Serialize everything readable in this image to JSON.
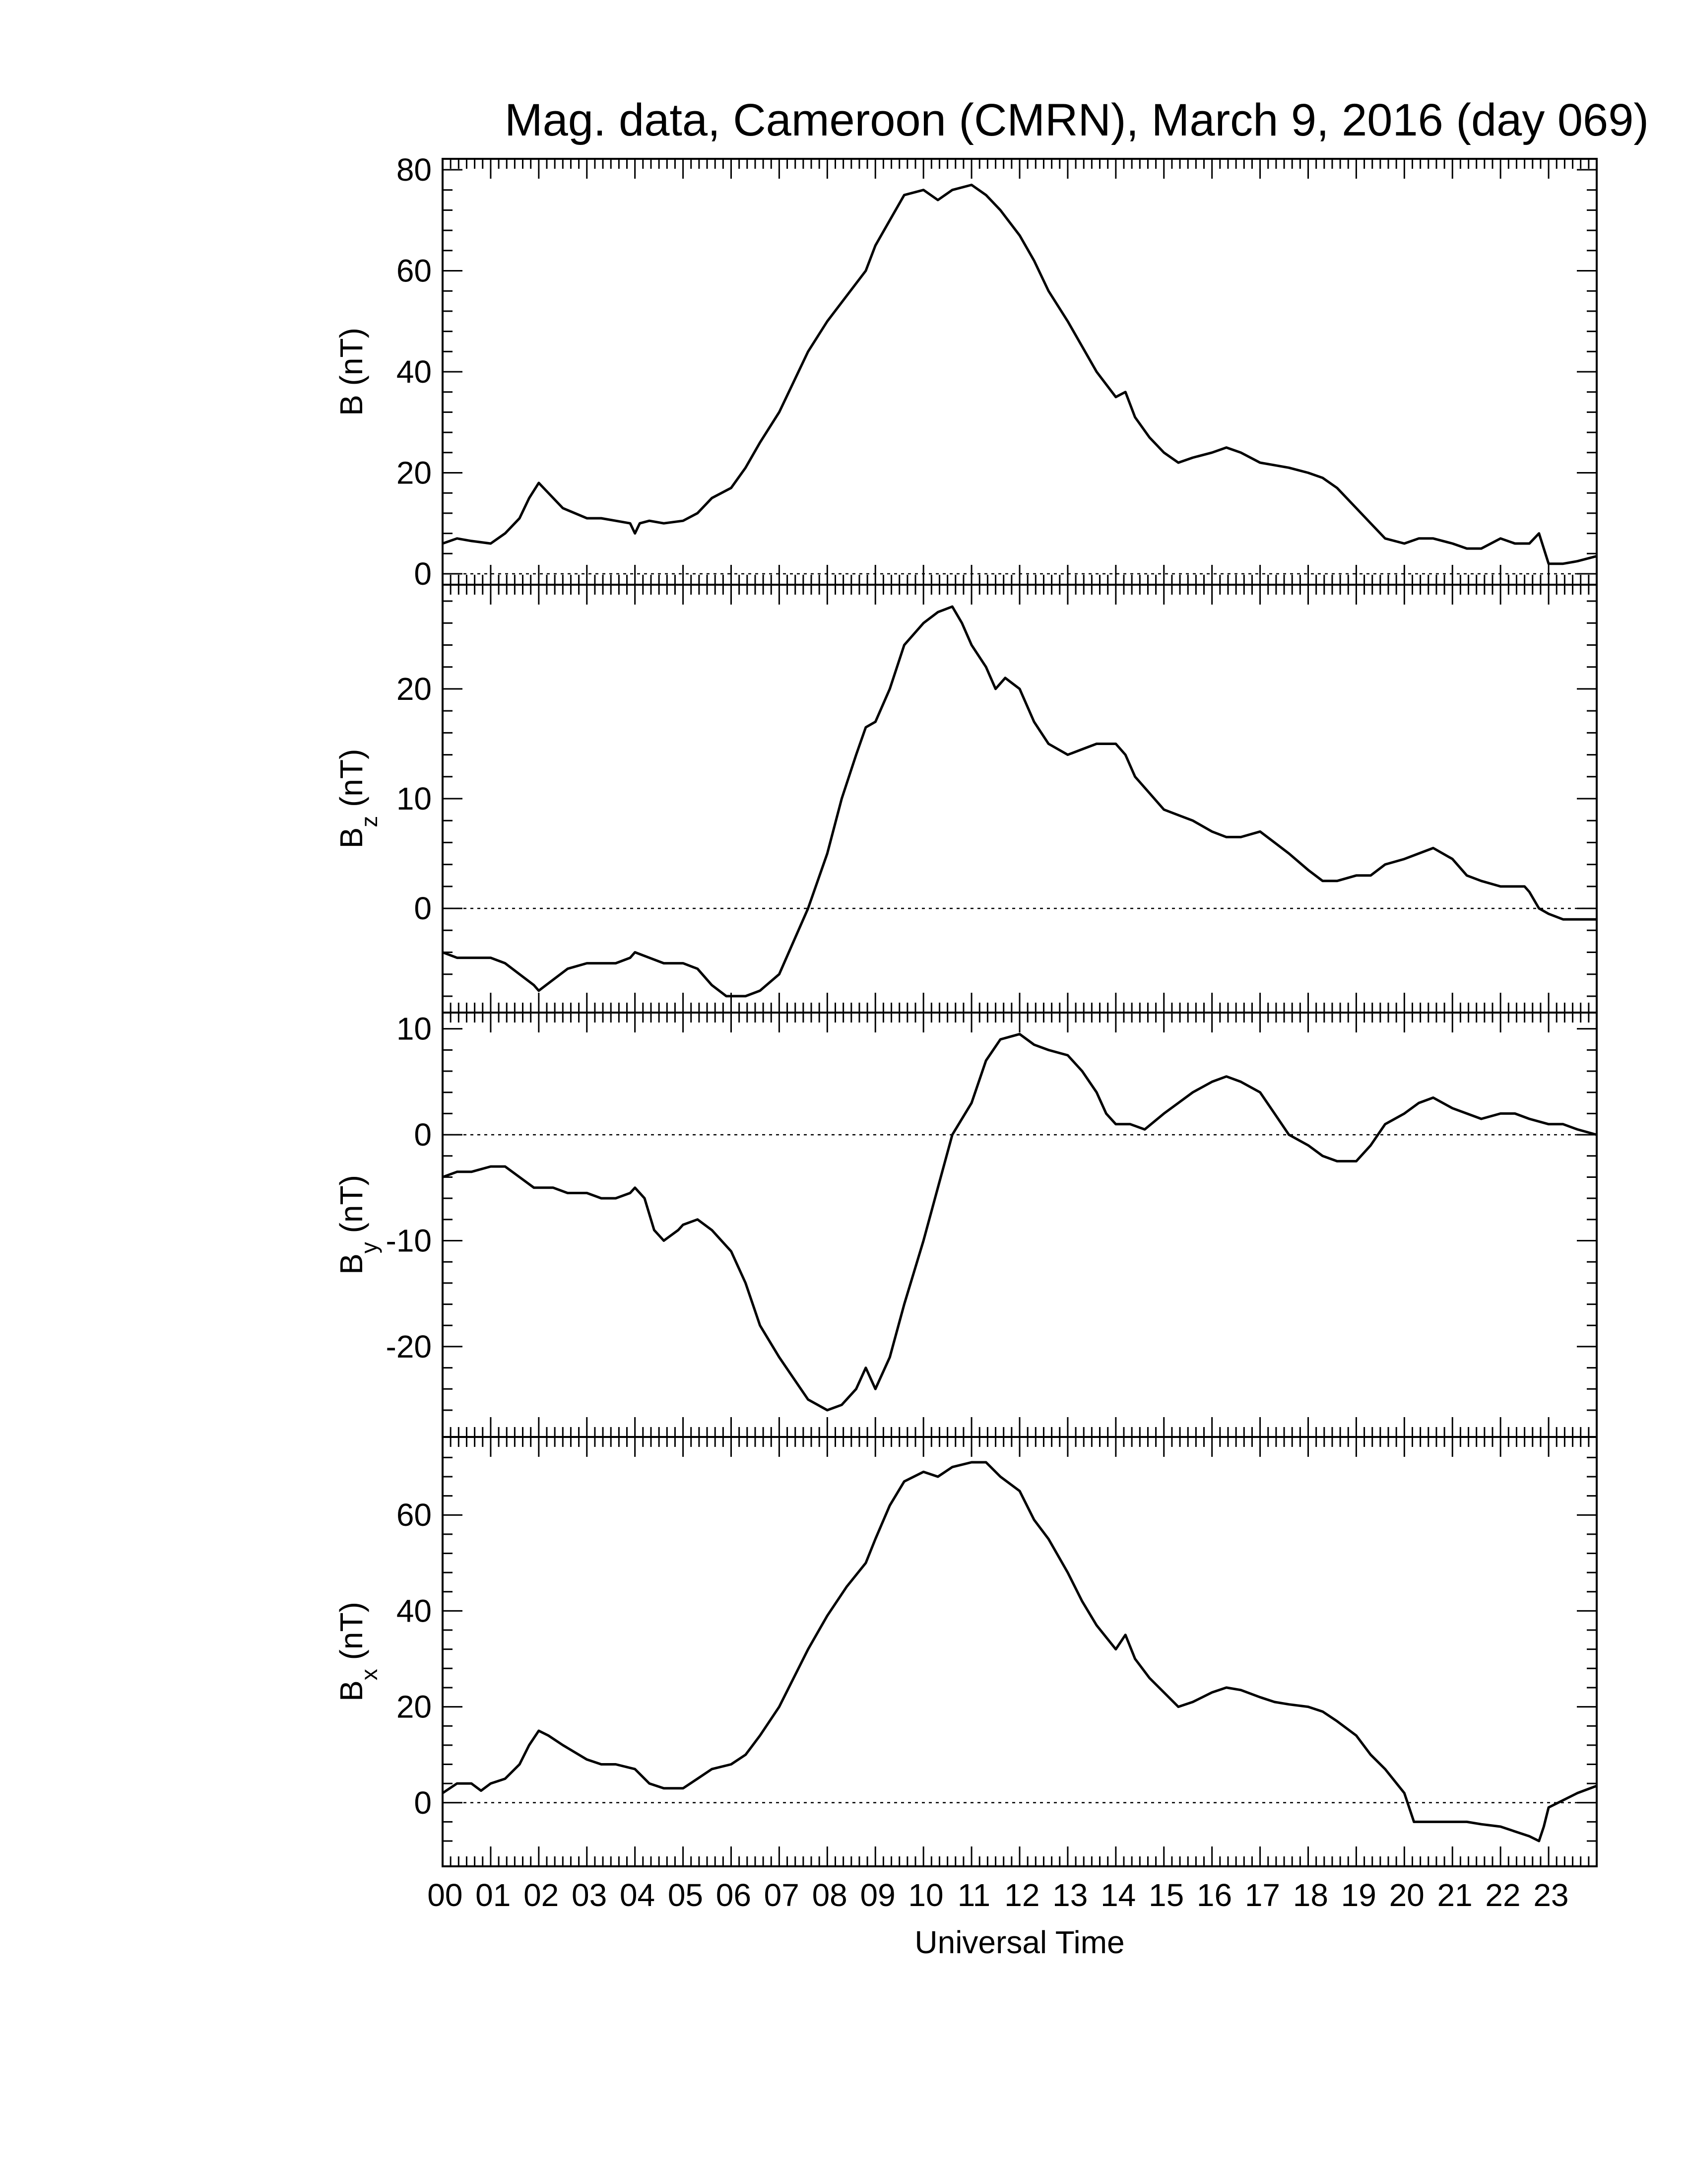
{
  "chart_data": {
    "type": "line",
    "title": "Mag. data, Cameroon (CMRN), March 9, 2016 (day 069)",
    "xlabel": "Universal Time",
    "x_unit": "hours (UT)",
    "xlim": [
      0,
      24
    ],
    "x_tick_labels": [
      "00",
      "01",
      "02",
      "03",
      "04",
      "05",
      "06",
      "07",
      "08",
      "09",
      "10",
      "11",
      "12",
      "13",
      "14",
      "15",
      "16",
      "17",
      "18",
      "19",
      "20",
      "21",
      "22",
      "23"
    ],
    "panels": [
      {
        "id": "B",
        "ylabel_main": "B",
        "ylabel_sub": "",
        "ylabel_unit": " (nT)",
        "ylim": [
          0,
          80
        ],
        "yticks": [
          0,
          20,
          40,
          60,
          80
        ],
        "ytick_labels": [
          "0",
          "20",
          "40",
          "60",
          "80"
        ],
        "zero_line": true,
        "series": [
          {
            "x": [
              0,
              0.3,
              0.6,
              1.0,
              1.3,
              1.6,
              1.8,
              2.0,
              2.2,
              2.5,
              3.0,
              3.3,
              3.6,
              3.9,
              4.0,
              4.1,
              4.3,
              4.6,
              5.0,
              5.3,
              5.6,
              6.0,
              6.3,
              6.6,
              7.0,
              7.3,
              7.6,
              8.0,
              8.4,
              8.8,
              9.0,
              9.3,
              9.6,
              10.0,
              10.3,
              10.6,
              11.0,
              11.3,
              11.6,
              12.0,
              12.3,
              12.6,
              13.0,
              13.3,
              13.6,
              14.0,
              14.2,
              14.4,
              14.7,
              15.0,
              15.3,
              15.6,
              16.0,
              16.3,
              16.6,
              17.0,
              17.3,
              17.6,
              18.0,
              18.3,
              18.6,
              19.0,
              19.3,
              19.6,
              20.0,
              20.3,
              20.6,
              21.0,
              21.3,
              21.6,
              22.0,
              22.3,
              22.6,
              22.8,
              22.9,
              23.0,
              23.3,
              23.6,
              24.0
            ],
            "y": [
              6,
              7,
              6.5,
              6,
              8,
              11,
              15,
              18,
              16,
              13,
              11,
              11,
              10.5,
              10,
              8,
              10,
              10.5,
              10,
              10.5,
              12,
              15,
              17,
              21,
              26,
              32,
              38,
              44,
              50,
              55,
              60,
              65,
              70,
              75,
              76,
              74,
              76,
              77,
              75,
              72,
              67,
              62,
              56,
              50,
              45,
              40,
              35,
              36,
              31,
              27,
              24,
              22,
              23,
              24,
              25,
              24,
              22,
              21.5,
              21,
              20,
              19,
              17,
              13,
              10,
              7,
              6,
              7,
              7,
              6,
              5,
              5,
              7,
              6,
              6,
              8,
              5,
              2,
              2,
              2.5,
              3.5
            ]
          }
        ]
      },
      {
        "id": "Bz",
        "ylabel_main": "B",
        "ylabel_sub": "z",
        "ylabel_unit": " (nT)",
        "ylim": [
          -8.5,
          28.5
        ],
        "yticks": [
          0,
          10,
          20
        ],
        "ytick_labels": [
          "0",
          "10",
          "20"
        ],
        "zero_line": true,
        "series": [
          {
            "x": [
              0,
              0.3,
              0.6,
              1.0,
              1.3,
              1.6,
              1.9,
              2.0,
              2.3,
              2.6,
              3.0,
              3.3,
              3.6,
              3.9,
              4.0,
              4.3,
              4.6,
              5.0,
              5.3,
              5.6,
              5.9,
              6.0,
              6.3,
              6.6,
              7.0,
              7.3,
              7.6,
              8.0,
              8.3,
              8.6,
              8.8,
              9.0,
              9.3,
              9.6,
              10.0,
              10.3,
              10.6,
              10.8,
              11.0,
              11.3,
              11.5,
              11.7,
              12.0,
              12.3,
              12.6,
              13.0,
              13.3,
              13.6,
              14.0,
              14.2,
              14.4,
              14.7,
              15.0,
              15.3,
              15.6,
              16.0,
              16.3,
              16.6,
              17.0,
              17.3,
              17.6,
              18.0,
              18.3,
              18.6,
              19.0,
              19.3,
              19.6,
              20.0,
              20.3,
              20.6,
              21.0,
              21.3,
              21.6,
              22.0,
              22.3,
              22.5,
              22.6,
              22.8,
              23.0,
              23.3,
              23.6,
              24.0
            ],
            "y": [
              -4,
              -4.5,
              -4.5,
              -4.5,
              -5,
              -6,
              -7,
              -7.5,
              -6.5,
              -5.5,
              -5,
              -5,
              -5,
              -4.5,
              -4,
              -4.5,
              -5,
              -5,
              -5.5,
              -7,
              -8,
              -8,
              -8,
              -7.5,
              -6,
              -3,
              0,
              5,
              10,
              14,
              16.5,
              17,
              20,
              24,
              26,
              27,
              27.5,
              26,
              24,
              22,
              20,
              21,
              20,
              17,
              15,
              14,
              14.5,
              15,
              15,
              14,
              12,
              10.5,
              9,
              8.5,
              8,
              7,
              6.5,
              6.5,
              7,
              6,
              5,
              3.5,
              2.5,
              2.5,
              3,
              3,
              4,
              4.5,
              5,
              5.5,
              4.5,
              3,
              2.5,
              2,
              2,
              2,
              1.5,
              0,
              -0.5,
              -1,
              -1,
              -1
            ]
          }
        ]
      },
      {
        "id": "By",
        "ylabel_main": "B",
        "ylabel_sub": "y",
        "ylabel_unit": " (nT)",
        "ylim": [
          -27.5,
          10.5
        ],
        "yticks": [
          -20,
          -10,
          0,
          10
        ],
        "ytick_labels": [
          "-20",
          "-10",
          "0",
          "10"
        ],
        "zero_line": true,
        "series": [
          {
            "x": [
              0,
              0.3,
              0.6,
              1.0,
              1.3,
              1.6,
              1.9,
              2.0,
              2.3,
              2.6,
              3.0,
              3.3,
              3.6,
              3.9,
              4.0,
              4.2,
              4.4,
              4.6,
              4.9,
              5.0,
              5.3,
              5.6,
              6.0,
              6.3,
              6.6,
              7.0,
              7.3,
              7.6,
              8.0,
              8.3,
              8.6,
              8.8,
              9.0,
              9.3,
              9.6,
              10.0,
              10.3,
              10.6,
              11.0,
              11.3,
              11.6,
              12.0,
              12.3,
              12.6,
              13.0,
              13.3,
              13.6,
              13.8,
              14.0,
              14.3,
              14.6,
              15.0,
              15.3,
              15.6,
              16.0,
              16.3,
              16.6,
              17.0,
              17.3,
              17.6,
              18.0,
              18.3,
              18.6,
              19.0,
              19.3,
              19.6,
              20.0,
              20.3,
              20.6,
              21.0,
              21.3,
              21.6,
              22.0,
              22.3,
              22.6,
              23.0,
              23.3,
              23.6,
              24.0
            ],
            "y": [
              -4,
              -3.5,
              -3.5,
              -3,
              -3,
              -4,
              -5,
              -5,
              -5,
              -5.5,
              -5.5,
              -6,
              -6,
              -5.5,
              -5,
              -6,
              -9,
              -10,
              -9,
              -8.5,
              -8,
              -9,
              -11,
              -14,
              -18,
              -21,
              -23,
              -25,
              -26,
              -25.5,
              -24,
              -22,
              -24,
              -21,
              -16,
              -10,
              -5,
              0,
              3,
              7,
              9,
              9.5,
              8.5,
              8,
              7.5,
              6,
              4,
              2,
              1,
              1,
              0.5,
              2,
              3,
              4,
              5,
              5.5,
              5,
              4,
              2,
              0,
              -1,
              -2,
              -2.5,
              -2.5,
              -1,
              1,
              2,
              3,
              3.5,
              2.5,
              2,
              1.5,
              2,
              2,
              1.5,
              1,
              1,
              0.5,
              0
            ]
          }
        ]
      },
      {
        "id": "Bx",
        "ylabel_main": "B",
        "ylabel_sub": "x",
        "ylabel_unit": " (nT)",
        "ylim": [
          -11,
          74
        ],
        "yticks": [
          0,
          20,
          40,
          60
        ],
        "ytick_labels": [
          "0",
          "20",
          "40",
          "60"
        ],
        "zero_line": true,
        "series": [
          {
            "x": [
              0,
              0.3,
              0.6,
              0.8,
              1.0,
              1.3,
              1.6,
              1.8,
              2.0,
              2.2,
              2.5,
              3.0,
              3.3,
              3.6,
              4.0,
              4.3,
              4.6,
              5.0,
              5.3,
              5.6,
              6.0,
              6.3,
              6.6,
              7.0,
              7.3,
              7.6,
              8.0,
              8.4,
              8.8,
              9.0,
              9.3,
              9.6,
              10.0,
              10.3,
              10.6,
              11.0,
              11.3,
              11.6,
              12.0,
              12.3,
              12.6,
              13.0,
              13.3,
              13.6,
              14.0,
              14.2,
              14.4,
              14.7,
              15.0,
              15.3,
              15.6,
              16.0,
              16.3,
              16.6,
              17.0,
              17.3,
              17.6,
              18.0,
              18.3,
              18.6,
              19.0,
              19.3,
              19.6,
              20.0,
              20.2,
              20.4,
              20.6,
              21.0,
              21.3,
              21.6,
              22.0,
              22.3,
              22.6,
              22.8,
              22.9,
              23.0,
              23.3,
              23.6,
              24.0
            ],
            "y": [
              2,
              4,
              4,
              2.5,
              4,
              5,
              8,
              12,
              15,
              14,
              12,
              9,
              8,
              8,
              7,
              4,
              3,
              3,
              5,
              7,
              8,
              10,
              14,
              20,
              26,
              32,
              39,
              45,
              50,
              55,
              62,
              67,
              69,
              68,
              70,
              71,
              71,
              68,
              65,
              59,
              55,
              48,
              42,
              37,
              32,
              35,
              30,
              26,
              23,
              20,
              21,
              23,
              24,
              23.5,
              22,
              21,
              20.5,
              20,
              19,
              17,
              14,
              10,
              7,
              2,
              -4,
              -4,
              -4,
              -4,
              -4,
              -4.5,
              -5,
              -6,
              -7,
              -8,
              -5,
              -1,
              0.5,
              2,
              3.5
            ]
          }
        ]
      }
    ]
  }
}
